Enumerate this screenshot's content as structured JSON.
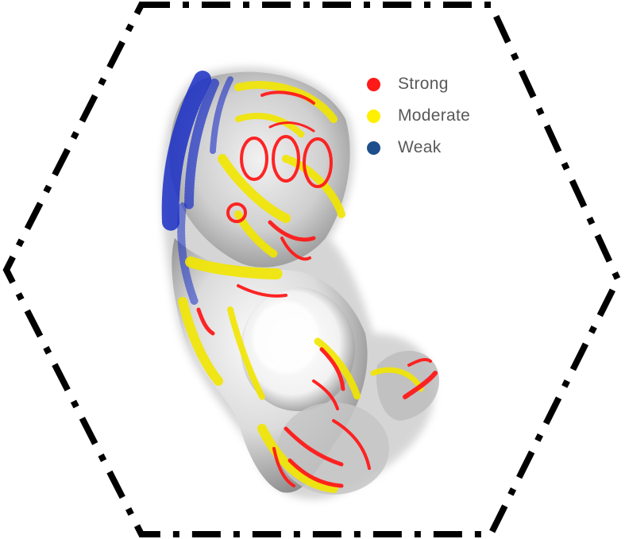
{
  "legend": {
    "items": [
      {
        "label": "Strong",
        "color": "#ff1a1a"
      },
      {
        "label": "Moderate",
        "color": "#fff000"
      },
      {
        "label": "Weak",
        "color": "#1f4e8c"
      }
    ]
  },
  "colors": {
    "frame": "#000000",
    "tissue": "#9a9a9a",
    "weak_overlay": "#1a2fc4"
  },
  "image": {
    "subject": "3d-rendered-embryo-volume-with-expression-overlay"
  }
}
